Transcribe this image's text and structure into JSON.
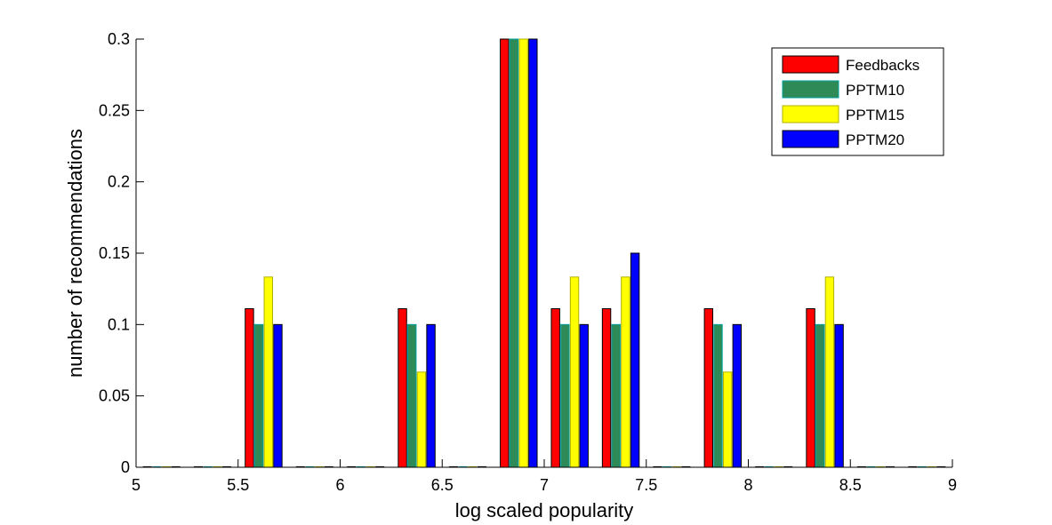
{
  "chart_data": {
    "type": "bar",
    "x": [
      5.125,
      5.375,
      5.625,
      5.875,
      6.125,
      6.375,
      6.625,
      6.875,
      7.125,
      7.375,
      7.625,
      7.875,
      8.125,
      8.375,
      8.625,
      8.875
    ],
    "series": [
      {
        "name": "Feedbacks",
        "color": "#ff0000",
        "edge": "#000000",
        "values": [
          0,
          0,
          0.1111,
          0,
          0,
          0.1111,
          0,
          0.3,
          0.1111,
          0.1111,
          0,
          0.1111,
          0,
          0.1111,
          0,
          0
        ]
      },
      {
        "name": "PPTM10",
        "color": "#2e8b57",
        "edge": "#00a0a0",
        "values": [
          0,
          0,
          0.1,
          0,
          0,
          0.1,
          0,
          0.3,
          0.1,
          0.1,
          0,
          0.1,
          0,
          0.1,
          0,
          0
        ]
      },
      {
        "name": "PPTM15",
        "color": "#ffff00",
        "edge": "#b0b000",
        "values": [
          0,
          0,
          0.1333,
          0,
          0,
          0.0667,
          0,
          0.3,
          0.1333,
          0.1333,
          0,
          0.0667,
          0,
          0.1333,
          0,
          0
        ]
      },
      {
        "name": "PPTM20",
        "color": "#0000ff",
        "edge": "#000000",
        "values": [
          0,
          0,
          0.1,
          0,
          0,
          0.1,
          0,
          0.3,
          0.1,
          0.15,
          0,
          0.1,
          0,
          0.1,
          0,
          0
        ]
      }
    ],
    "xlabel": "log scaled popularity",
    "ylabel": "number of recommendations",
    "xlim": [
      5,
      9
    ],
    "ylim": [
      0,
      0.3
    ],
    "xticks": [
      "5",
      "5.5",
      "6",
      "6.5",
      "7",
      "7.5",
      "8",
      "8.5",
      "9"
    ],
    "yticks": [
      "0",
      "0.05",
      "0.1",
      "0.15",
      "0.2",
      "0.25",
      "0.3"
    ],
    "grid": false,
    "legend": "top-right"
  }
}
